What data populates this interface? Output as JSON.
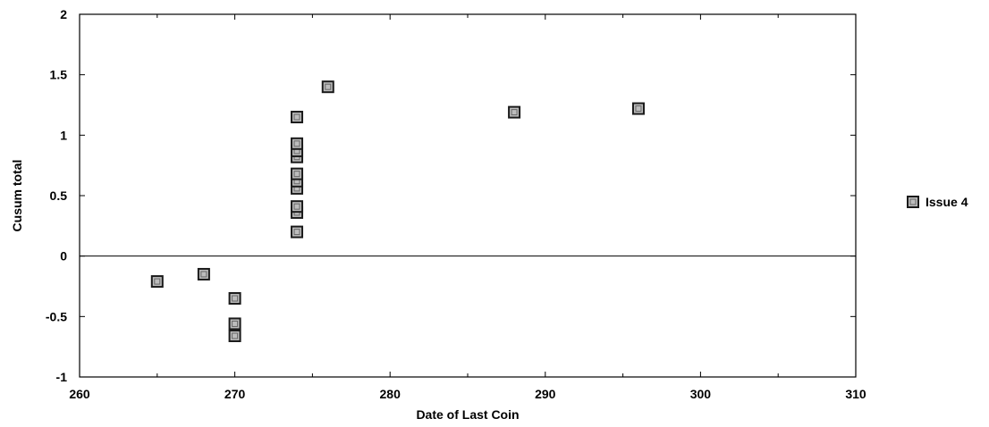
{
  "chart_data": {
    "type": "scatter",
    "title": "",
    "xlabel": "Date of Last Coin",
    "ylabel": "Cusum total",
    "xlim": [
      260,
      310
    ],
    "ylim": [
      -1,
      2
    ],
    "xticks": [
      260,
      270,
      280,
      290,
      300,
      310
    ],
    "yticks": [
      2,
      1.5,
      1,
      0.5,
      0,
      -0.5,
      -1
    ],
    "ytick_labels": [
      "2",
      "1.5",
      "1",
      "0.5",
      "0",
      "-0.5",
      "-1"
    ],
    "grid": false,
    "zero_line": true,
    "legend_position": "right",
    "series": [
      {
        "name": "Issue 4",
        "marker": "square",
        "marker_color": "#bdbdbd",
        "marker_edge": "#1a1a1a",
        "points": [
          {
            "x": 265,
            "y": -0.21
          },
          {
            "x": 268,
            "y": -0.15
          },
          {
            "x": 270,
            "y": -0.35
          },
          {
            "x": 270,
            "y": -0.56
          },
          {
            "x": 270,
            "y": -0.66
          },
          {
            "x": 274,
            "y": 0.2
          },
          {
            "x": 274,
            "y": 0.36
          },
          {
            "x": 274,
            "y": 0.41
          },
          {
            "x": 274,
            "y": 0.56
          },
          {
            "x": 274,
            "y": 0.62
          },
          {
            "x": 274,
            "y": 0.68
          },
          {
            "x": 274,
            "y": 0.82
          },
          {
            "x": 274,
            "y": 0.87
          },
          {
            "x": 274,
            "y": 0.93
          },
          {
            "x": 274,
            "y": 1.15
          },
          {
            "x": 276,
            "y": 1.4
          },
          {
            "x": 288,
            "y": 1.19
          },
          {
            "x": 296,
            "y": 1.22
          }
        ]
      }
    ]
  }
}
